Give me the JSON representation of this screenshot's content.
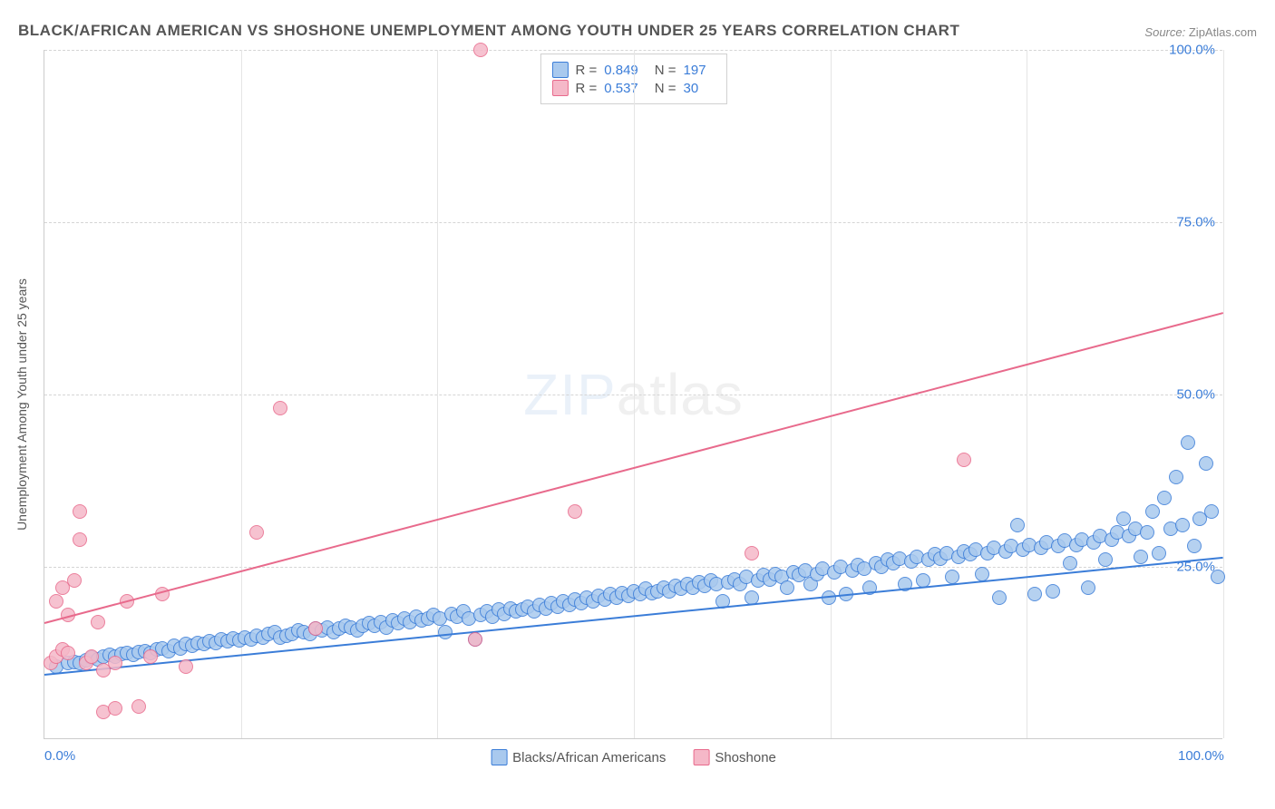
{
  "title": "BLACK/AFRICAN AMERICAN VS SHOSHONE UNEMPLOYMENT AMONG YOUTH UNDER 25 YEARS CORRELATION CHART",
  "source_label": "Source:",
  "source_value": "ZipAtlas.com",
  "y_axis_label": "Unemployment Among Youth under 25 years",
  "watermark_bold": "ZIP",
  "watermark_light": "atlas",
  "chart": {
    "type": "scatter",
    "xlim": [
      0,
      100
    ],
    "ylim": [
      0,
      100
    ],
    "x_ticks": [
      0,
      100
    ],
    "x_tick_labels": [
      "0.0%",
      "100.0%"
    ],
    "y_ticks": [
      25,
      50,
      75,
      100
    ],
    "y_tick_labels": [
      "25.0%",
      "50.0%",
      "75.0%",
      "100.0%"
    ],
    "x_grid_positions": [
      16.67,
      33.33,
      50.0,
      66.67,
      83.33,
      100.0
    ],
    "background_color": "#ffffff",
    "grid_color": "#d5d5d5",
    "axis_color": "#cccccc",
    "tick_label_color": "#3b7dd8",
    "text_color": "#555555",
    "point_radius": 8,
    "point_stroke_width": 1.5,
    "point_fill_opacity": 0.25,
    "trend_line_width": 2
  },
  "series": [
    {
      "name": "Blacks/African Americans",
      "color_stroke": "#3b7dd8",
      "color_fill": "#a9c9ee",
      "R": "0.849",
      "N": "197",
      "trend": {
        "x1": 0,
        "y1": 9.5,
        "x2": 100,
        "y2": 26.5
      },
      "points": [
        [
          1,
          10.5
        ],
        [
          2,
          11
        ],
        [
          2.5,
          11.2
        ],
        [
          3,
          11
        ],
        [
          3.5,
          11.5
        ],
        [
          4,
          11.8
        ],
        [
          4.5,
          11.6
        ],
        [
          5,
          12
        ],
        [
          5.5,
          12.2
        ],
        [
          6,
          12
        ],
        [
          6.5,
          12.4
        ],
        [
          7,
          12.5
        ],
        [
          7.5,
          12.3
        ],
        [
          8,
          12.6
        ],
        [
          8.5,
          12.8
        ],
        [
          9,
          12.5
        ],
        [
          9.5,
          13
        ],
        [
          10,
          13.2
        ],
        [
          10.5,
          12.8
        ],
        [
          11,
          13.5
        ],
        [
          11.5,
          13.2
        ],
        [
          12,
          13.8
        ],
        [
          12.5,
          13.5
        ],
        [
          13,
          14
        ],
        [
          13.5,
          13.8
        ],
        [
          14,
          14.2
        ],
        [
          14.5,
          13.9
        ],
        [
          15,
          14.5
        ],
        [
          15.5,
          14.2
        ],
        [
          16,
          14.6
        ],
        [
          16.5,
          14.3
        ],
        [
          17,
          14.8
        ],
        [
          17.5,
          14.5
        ],
        [
          18,
          15
        ],
        [
          18.5,
          14.7
        ],
        [
          19,
          15.2
        ],
        [
          19.5,
          15.5
        ],
        [
          20,
          14.8
        ],
        [
          20.5,
          15
        ],
        [
          21,
          15.3
        ],
        [
          21.5,
          15.8
        ],
        [
          22,
          15.5
        ],
        [
          22.5,
          15.2
        ],
        [
          23,
          16
        ],
        [
          23.5,
          15.8
        ],
        [
          24,
          16.2
        ],
        [
          24.5,
          15.5
        ],
        [
          25,
          16
        ],
        [
          25.5,
          16.5
        ],
        [
          26,
          16.2
        ],
        [
          26.5,
          15.8
        ],
        [
          27,
          16.5
        ],
        [
          27.5,
          16.8
        ],
        [
          28,
          16.5
        ],
        [
          28.5,
          17
        ],
        [
          29,
          16.2
        ],
        [
          29.5,
          17.2
        ],
        [
          30,
          16.8
        ],
        [
          30.5,
          17.5
        ],
        [
          31,
          17
        ],
        [
          31.5,
          17.8
        ],
        [
          32,
          17.2
        ],
        [
          32.5,
          17.5
        ],
        [
          33,
          18
        ],
        [
          33.5,
          17.5
        ],
        [
          34,
          15.5
        ],
        [
          34.5,
          18.2
        ],
        [
          35,
          17.8
        ],
        [
          35.5,
          18.5
        ],
        [
          36,
          17.5
        ],
        [
          36.5,
          14.5
        ],
        [
          37,
          18
        ],
        [
          37.5,
          18.5
        ],
        [
          38,
          17.8
        ],
        [
          38.5,
          18.8
        ],
        [
          39,
          18.2
        ],
        [
          39.5,
          19
        ],
        [
          40,
          18.5
        ],
        [
          40.5,
          18.8
        ],
        [
          41,
          19.2
        ],
        [
          41.5,
          18.5
        ],
        [
          42,
          19.5
        ],
        [
          42.5,
          19
        ],
        [
          43,
          19.8
        ],
        [
          43.5,
          19.2
        ],
        [
          44,
          20
        ],
        [
          44.5,
          19.5
        ],
        [
          45,
          20.2
        ],
        [
          45.5,
          19.8
        ],
        [
          46,
          20.5
        ],
        [
          46.5,
          20
        ],
        [
          47,
          20.8
        ],
        [
          47.5,
          20.2
        ],
        [
          48,
          21
        ],
        [
          48.5,
          20.5
        ],
        [
          49,
          21.2
        ],
        [
          49.5,
          20.8
        ],
        [
          50,
          21.5
        ],
        [
          50.5,
          21
        ],
        [
          51,
          21.8
        ],
        [
          51.5,
          21.2
        ],
        [
          52,
          21.5
        ],
        [
          52.5,
          22
        ],
        [
          53,
          21.5
        ],
        [
          53.5,
          22.2
        ],
        [
          54,
          21.8
        ],
        [
          54.5,
          22.5
        ],
        [
          55,
          22
        ],
        [
          55.5,
          22.8
        ],
        [
          56,
          22.2
        ],
        [
          56.5,
          23
        ],
        [
          57,
          22.5
        ],
        [
          57.5,
          20
        ],
        [
          58,
          22.8
        ],
        [
          58.5,
          23.2
        ],
        [
          59,
          22.5
        ],
        [
          59.5,
          23.5
        ],
        [
          60,
          20.5
        ],
        [
          60.5,
          23
        ],
        [
          61,
          23.8
        ],
        [
          61.5,
          23.2
        ],
        [
          62,
          24
        ],
        [
          62.5,
          23.5
        ],
        [
          63,
          22
        ],
        [
          63.5,
          24.2
        ],
        [
          64,
          23.8
        ],
        [
          64.5,
          24.5
        ],
        [
          65,
          22.5
        ],
        [
          65.5,
          24
        ],
        [
          66,
          24.8
        ],
        [
          66.5,
          20.5
        ],
        [
          67,
          24.2
        ],
        [
          67.5,
          25
        ],
        [
          68,
          21
        ],
        [
          68.5,
          24.5
        ],
        [
          69,
          25.2
        ],
        [
          69.5,
          24.8
        ],
        [
          70,
          22
        ],
        [
          70.5,
          25.5
        ],
        [
          71,
          25
        ],
        [
          71.5,
          26
        ],
        [
          72,
          25.5
        ],
        [
          72.5,
          26.2
        ],
        [
          73,
          22.5
        ],
        [
          73.5,
          25.8
        ],
        [
          74,
          26.5
        ],
        [
          74.5,
          23
        ],
        [
          75,
          26
        ],
        [
          75.5,
          26.8
        ],
        [
          76,
          26.2
        ],
        [
          76.5,
          27
        ],
        [
          77,
          23.5
        ],
        [
          77.5,
          26.5
        ],
        [
          78,
          27.2
        ],
        [
          78.5,
          26.8
        ],
        [
          79,
          27.5
        ],
        [
          79.5,
          24
        ],
        [
          80,
          27
        ],
        [
          80.5,
          27.8
        ],
        [
          81,
          20.5
        ],
        [
          81.5,
          27.2
        ],
        [
          82,
          28
        ],
        [
          82.5,
          31
        ],
        [
          83,
          27.5
        ],
        [
          83.5,
          28.2
        ],
        [
          84,
          21
        ],
        [
          84.5,
          27.8
        ],
        [
          85,
          28.5
        ],
        [
          85.5,
          21.5
        ],
        [
          86,
          28
        ],
        [
          86.5,
          28.8
        ],
        [
          87,
          25.5
        ],
        [
          87.5,
          28.2
        ],
        [
          88,
          29
        ],
        [
          88.5,
          22
        ],
        [
          89,
          28.5
        ],
        [
          89.5,
          29.5
        ],
        [
          90,
          26
        ],
        [
          90.5,
          29
        ],
        [
          91,
          30
        ],
        [
          91.5,
          32
        ],
        [
          92,
          29.5
        ],
        [
          92.5,
          30.5
        ],
        [
          93,
          26.5
        ],
        [
          93.5,
          30
        ],
        [
          94,
          33
        ],
        [
          94.5,
          27
        ],
        [
          95,
          35
        ],
        [
          95.5,
          30.5
        ],
        [
          96,
          38
        ],
        [
          96.5,
          31
        ],
        [
          97,
          43
        ],
        [
          97.5,
          28
        ],
        [
          98,
          32
        ],
        [
          98.5,
          40
        ],
        [
          99,
          33
        ],
        [
          99.5,
          23.5
        ]
      ]
    },
    {
      "name": "Shoshone",
      "color_stroke": "#e86a8c",
      "color_fill": "#f5b8c8",
      "R": "0.537",
      "N": "30",
      "trend": {
        "x1": 0,
        "y1": 17,
        "x2": 100,
        "y2": 62
      },
      "points": [
        [
          0.5,
          11
        ],
        [
          1,
          12
        ],
        [
          1.5,
          13
        ],
        [
          1,
          20
        ],
        [
          1.5,
          22
        ],
        [
          2,
          12.5
        ],
        [
          2,
          18
        ],
        [
          2.5,
          23
        ],
        [
          3,
          33
        ],
        [
          3,
          29
        ],
        [
          3.5,
          11
        ],
        [
          4,
          12
        ],
        [
          4.5,
          17
        ],
        [
          5,
          10
        ],
        [
          5,
          4
        ],
        [
          6,
          11
        ],
        [
          6,
          4.5
        ],
        [
          7,
          20
        ],
        [
          8,
          4.8
        ],
        [
          9,
          12
        ],
        [
          10,
          21
        ],
        [
          12,
          10.5
        ],
        [
          18,
          30
        ],
        [
          20,
          48
        ],
        [
          23,
          16
        ],
        [
          37,
          100
        ],
        [
          45,
          33
        ],
        [
          60,
          27
        ],
        [
          78,
          40.5
        ],
        [
          36.5,
          14.5
        ]
      ]
    }
  ],
  "legend_rn_label_R": "R =",
  "legend_rn_label_N": "N ="
}
